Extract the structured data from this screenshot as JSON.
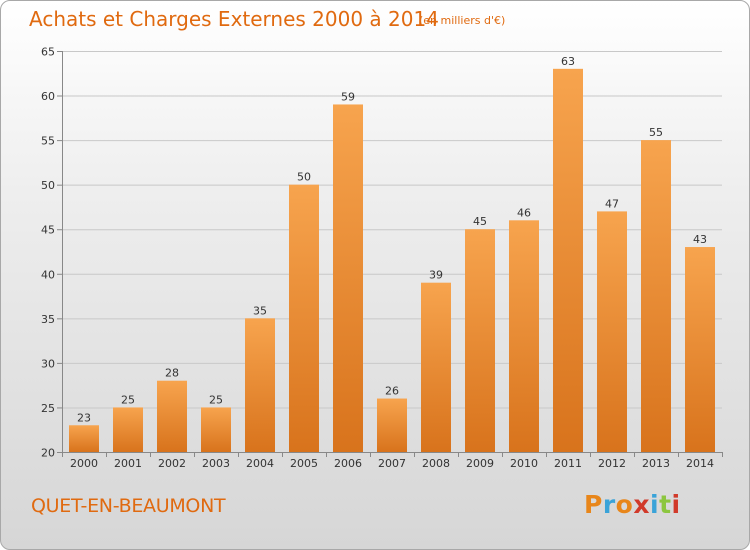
{
  "chart_data": {
    "type": "bar",
    "title": "Achats et Charges Externes 2000 à 2014",
    "subtitle": "(en milliers d'€)",
    "categories": [
      "2000",
      "2001",
      "2002",
      "2003",
      "2004",
      "2005",
      "2006",
      "2007",
      "2008",
      "2009",
      "2010",
      "2011",
      "2012",
      "2013",
      "2014"
    ],
    "values": [
      23,
      25,
      28,
      25,
      35,
      50,
      59,
      26,
      39,
      45,
      46,
      63,
      47,
      55,
      43
    ],
    "ylim": [
      20,
      65
    ],
    "yticks": [
      20,
      25,
      30,
      35,
      40,
      45,
      50,
      55,
      60,
      65
    ],
    "grid": true,
    "bar_color_top": "#f7a44e",
    "bar_color_bottom": "#d8731c",
    "label_color": "#333333"
  },
  "footer": {
    "commune": "QUET-EN-BEAUMONT",
    "logo_text": "Proxiti",
    "logo_colors": [
      "#e8861a",
      "#3aa3d8",
      "#e8861a",
      "#d13a2a",
      "#3aa3d8",
      "#8cc63f",
      "#d13a2a"
    ]
  }
}
